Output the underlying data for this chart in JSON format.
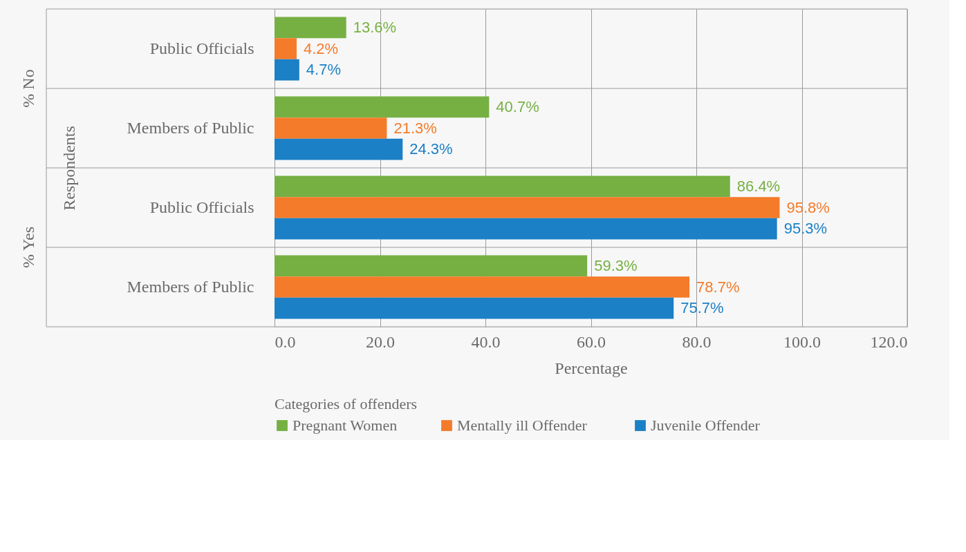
{
  "chart_data": {
    "type": "bar",
    "orientation": "horizontal",
    "categories": [
      "Public Officials",
      "Members of Public",
      "Public Officials",
      "Members of Public"
    ],
    "series": [
      {
        "name": "Pregnant Women",
        "color": "#76b043",
        "values": [
          13.6,
          40.7,
          86.4,
          59.3
        ],
        "value_labels": [
          "13.6%",
          "40.7%",
          "86.4%",
          "59.3%"
        ]
      },
      {
        "name": "Mentally ill  Offender",
        "color": "#f47b2a",
        "values": [
          4.2,
          21.3,
          95.8,
          78.7
        ],
        "value_labels": [
          "4.2%",
          "21.3%",
          "95.8%",
          "78.7%"
        ]
      },
      {
        "name": "Juvenile Offender",
        "color": "#1b80c6",
        "values": [
          4.7,
          24.3,
          95.3,
          75.7
        ],
        "value_labels": [
          "4.7%",
          "24.3%",
          "95.3%",
          "75.7%"
        ]
      }
    ],
    "xlabel": "Percentage",
    "ylabel": "Respondents",
    "legend_title": "Categories of offenders",
    "annotations": [
      "% No",
      "% Yes"
    ],
    "xlim": [
      0,
      120
    ],
    "xticks": [
      {
        "value": 0,
        "label": "0.0"
      },
      {
        "value": 20,
        "label": "20.0"
      },
      {
        "value": 40,
        "label": "40.0"
      },
      {
        "value": 60,
        "label": "60.0"
      },
      {
        "value": 80,
        "label": "80.0"
      },
      {
        "value": 100,
        "label": "100.0"
      },
      {
        "value": 120,
        "label": "120.0"
      }
    ],
    "grid": true,
    "legend": "bottom"
  }
}
